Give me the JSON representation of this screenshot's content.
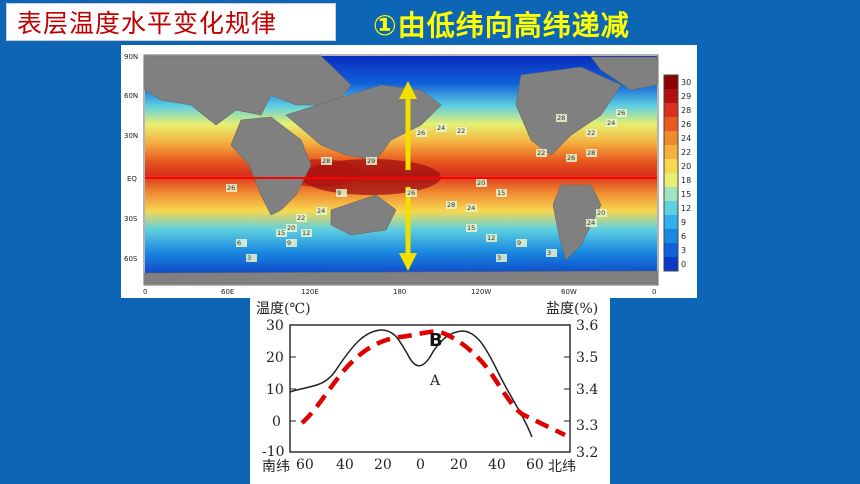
{
  "title": "表层温度水平变化规律",
  "subtitle": "①由低纬向高纬递减",
  "map": {
    "lat_labels": [
      "90N",
      "60N",
      "30N",
      "EQ",
      "30S",
      "60S"
    ],
    "lon_labels": [
      "0",
      "60E",
      "120E",
      "180",
      "120W",
      "60W",
      "0"
    ],
    "legend_values": [
      "30",
      "29",
      "28",
      "26",
      "24",
      "22",
      "20",
      "18",
      "15",
      "12",
      "9",
      "6",
      "3",
      "0"
    ],
    "legend_colors": [
      "#8b0000",
      "#b01010",
      "#d8301c",
      "#e85a20",
      "#f08a30",
      "#f5b040",
      "#f7d850",
      "#e8ef70",
      "#9fe3c0",
      "#5fd0e0",
      "#30b0ec",
      "#1a88e0",
      "#1060d8",
      "#0a38c8"
    ],
    "contour_labels": [
      "26",
      "28",
      "29",
      "26",
      "28",
      "24",
      "22",
      "20",
      "15",
      "9",
      "26",
      "24",
      "22",
      "26",
      "28",
      "24",
      "22",
      "20",
      "15",
      "12",
      "9",
      "6",
      "3",
      "3",
      "3",
      "24",
      "20",
      "9",
      "12",
      "15",
      "22",
      "24",
      "26",
      "28"
    ]
  },
  "chart": {
    "left_axis_title": "温度(℃)",
    "right_axis_title": "盐度(%)",
    "left_ticks": [
      "30",
      "20",
      "10",
      "0",
      "-10"
    ],
    "right_ticks": [
      "3.6",
      "3.5",
      "3.4",
      "3.3",
      "3.2"
    ],
    "x_ticks": [
      "60",
      "40",
      "20",
      "0",
      "20",
      "40",
      "60"
    ],
    "south_label": "南纬",
    "north_label": "北纬",
    "point_a": "A",
    "point_b": "B",
    "line_color": "#222222",
    "dash_color": "#e00000"
  }
}
